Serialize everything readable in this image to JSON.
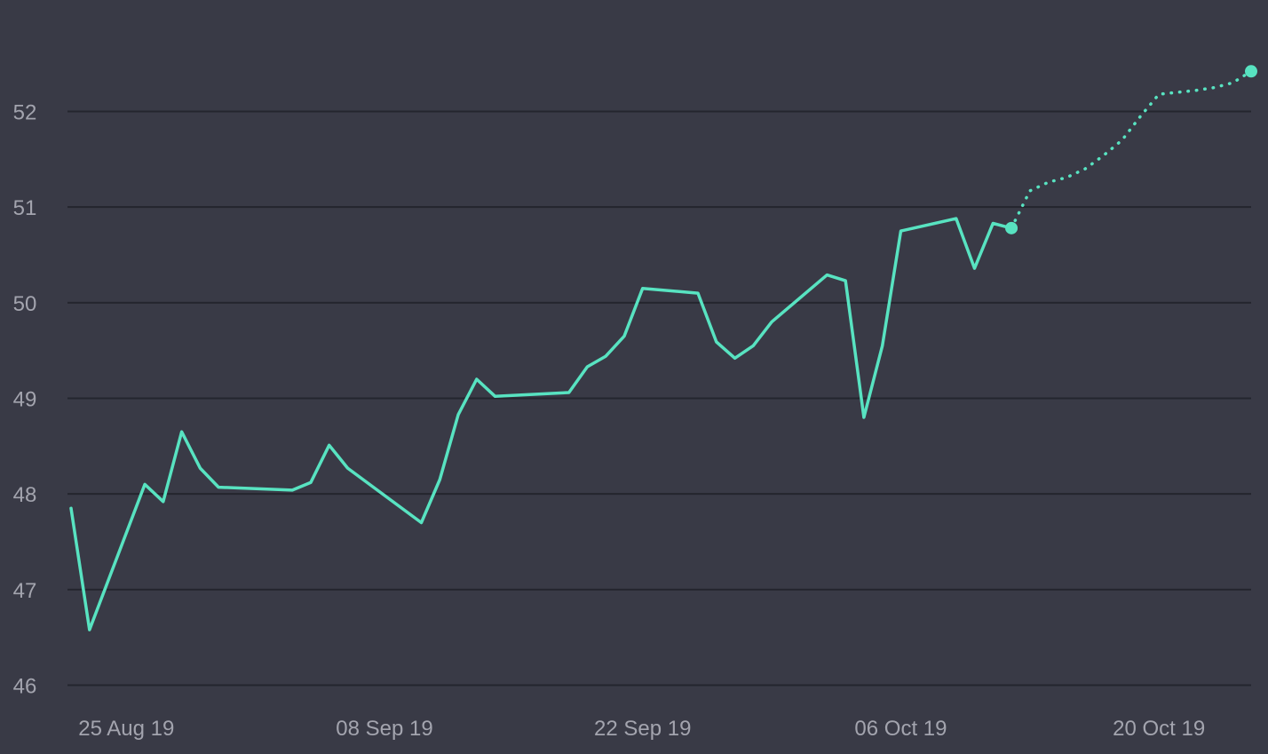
{
  "chart_data": {
    "type": "line",
    "title": "",
    "xlabel": "",
    "ylabel": "",
    "grid": true,
    "legend": "none",
    "x_ticks": [
      "25 Aug 19",
      "08 Sep 19",
      "22 Sep 19",
      "06 Oct 19",
      "20 Oct 19"
    ],
    "y_ticks": [
      46,
      47,
      48,
      49,
      50,
      51,
      52
    ],
    "xlim": [
      "2019-08-22",
      "2019-10-25"
    ],
    "ylim": [
      46,
      52.5
    ],
    "colors": {
      "line": "#58e3c1",
      "background": "#393a46",
      "grid": "#24252e",
      "tick_text": "#a3a4ae"
    },
    "series": [
      {
        "style": "solid",
        "points": [
          [
            "2019-08-22",
            47.85
          ],
          [
            "2019-08-23",
            46.58
          ],
          [
            "2019-08-26",
            48.1
          ],
          [
            "2019-08-27",
            47.92
          ],
          [
            "2019-08-28",
            48.65
          ],
          [
            "2019-08-29",
            48.27
          ],
          [
            "2019-08-30",
            48.07
          ],
          [
            "2019-09-03",
            48.04
          ],
          [
            "2019-09-04",
            48.12
          ],
          [
            "2019-09-05",
            48.51
          ],
          [
            "2019-09-06",
            48.27
          ],
          [
            "2019-09-10",
            47.7
          ],
          [
            "2019-09-11",
            48.15
          ],
          [
            "2019-09-12",
            48.83
          ],
          [
            "2019-09-13",
            49.2
          ],
          [
            "2019-09-14",
            49.02
          ],
          [
            "2019-09-18",
            49.06
          ],
          [
            "2019-09-19",
            49.33
          ],
          [
            "2019-09-20",
            49.44
          ],
          [
            "2019-09-21",
            49.65
          ],
          [
            "2019-09-22",
            50.15
          ],
          [
            "2019-09-25",
            50.1
          ],
          [
            "2019-09-26",
            49.59
          ],
          [
            "2019-09-27",
            49.42
          ],
          [
            "2019-09-28",
            49.55
          ],
          [
            "2019-09-29",
            49.8
          ],
          [
            "2019-10-02",
            50.29
          ],
          [
            "2019-10-03",
            50.23
          ],
          [
            "2019-10-04",
            48.8
          ],
          [
            "2019-10-05",
            49.55
          ],
          [
            "2019-10-06",
            50.75
          ],
          [
            "2019-10-09",
            50.88
          ],
          [
            "2019-10-10",
            50.36
          ],
          [
            "2019-10-11",
            50.83
          ],
          [
            "2019-10-12",
            50.78
          ]
        ]
      },
      {
        "style": "dotted",
        "points": [
          [
            "2019-10-12",
            50.78
          ],
          [
            "2019-10-13",
            51.17
          ],
          [
            "2019-10-14",
            51.26
          ],
          [
            "2019-10-15",
            51.31
          ],
          [
            "2019-10-16",
            51.4
          ],
          [
            "2019-10-17",
            51.54
          ],
          [
            "2019-10-18",
            51.7
          ],
          [
            "2019-10-19",
            51.95
          ],
          [
            "2019-10-20",
            52.18
          ],
          [
            "2019-10-22",
            52.22
          ],
          [
            "2019-10-23",
            52.25
          ],
          [
            "2019-10-24",
            52.3
          ],
          [
            "2019-10-25",
            52.42
          ]
        ]
      }
    ]
  }
}
